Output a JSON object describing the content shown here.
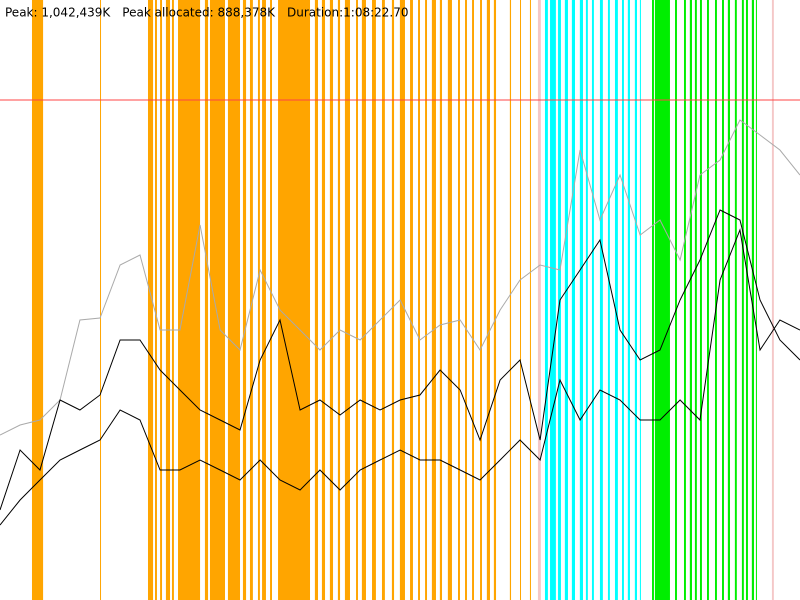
{
  "chart_data": {
    "type": "line",
    "header": [
      "Peak: 1,042,439K",
      "Peak allocated: 888,378K",
      "Duration:1:08:22.70"
    ],
    "xlim": [
      0,
      4103
    ],
    "ylim": [
      0,
      1297800
    ],
    "limit": {
      "value": 1081500,
      "color": "#ff4444"
    },
    "x": [
      0,
      103,
      205,
      308,
      410,
      513,
      616,
      718,
      821,
      923,
      1026,
      1129,
      1231,
      1334,
      1436,
      1539,
      1641,
      1744,
      1847,
      1949,
      2052,
      2154,
      2257,
      2360,
      2462,
      2565,
      2667,
      2770,
      2872,
      2975,
      3077,
      3180,
      3283,
      3385,
      3488,
      3590,
      3693,
      3795,
      3898,
      4000,
      4103
    ],
    "events": [
      {
        "color": "#ffa500",
        "spans": [
          [
            164,
            221
          ],
          [
            513,
            518
          ],
          [
            759,
            785
          ],
          [
            795,
            805
          ],
          [
            821,
            831
          ],
          [
            851,
            872
          ],
          [
            882,
            892
          ],
          [
            913,
            1026
          ],
          [
            1051,
            1067
          ],
          [
            1077,
            1154
          ],
          [
            1169,
            1231
          ],
          [
            1246,
            1262
          ],
          [
            1282,
            1297
          ],
          [
            1323,
            1333
          ],
          [
            1344,
            1364
          ],
          [
            1385,
            1395
          ],
          [
            1426,
            1590
          ],
          [
            1615,
            1631
          ],
          [
            1651,
            1667
          ],
          [
            1692,
            1708
          ],
          [
            1733,
            1744
          ],
          [
            1769,
            1795
          ],
          [
            1826,
            1836
          ],
          [
            1856,
            1877
          ],
          [
            1908,
            1928
          ],
          [
            1959,
            1974
          ],
          [
            2010,
            2021
          ],
          [
            2051,
            2077
          ],
          [
            2103,
            2118
          ],
          [
            2144,
            2154
          ],
          [
            2180,
            2190
          ],
          [
            2215,
            2236
          ],
          [
            2256,
            2267
          ],
          [
            2297,
            2318
          ],
          [
            2349,
            2359
          ],
          [
            2385,
            2395
          ],
          [
            2421,
            2431
          ],
          [
            2462,
            2472
          ],
          [
            2497,
            2513
          ],
          [
            2533,
            2544
          ],
          [
            2615,
            2621
          ],
          [
            2667,
            2672
          ],
          [
            2718,
            2723
          ]
        ]
      },
      {
        "color": "#f4c8c8",
        "spans": [
          [
            2759,
            2774
          ],
          [
            3959,
            3969
          ]
        ]
      },
      {
        "color": "#00ffff",
        "spans": [
          [
            2795,
            2810
          ],
          [
            2821,
            2851
          ],
          [
            2862,
            2877
          ],
          [
            2897,
            2913
          ],
          [
            2933,
            2949
          ],
          [
            2974,
            2990
          ],
          [
            3005,
            3015
          ],
          [
            3036,
            3046
          ],
          [
            3077,
            3092
          ],
          [
            3118,
            3128
          ],
          [
            3154,
            3169
          ],
          [
            3190,
            3200
          ],
          [
            3220,
            3231
          ],
          [
            3256,
            3267
          ],
          [
            3282,
            3287
          ]
        ]
      },
      {
        "color": "#00ee00",
        "spans": [
          [
            3344,
            3354
          ],
          [
            3359,
            3436
          ],
          [
            3462,
            3472
          ],
          [
            3508,
            3518
          ],
          [
            3538,
            3549
          ],
          [
            3564,
            3574
          ],
          [
            3590,
            3600
          ],
          [
            3626,
            3636
          ],
          [
            3667,
            3677
          ],
          [
            3703,
            3713
          ],
          [
            3733,
            3744
          ],
          [
            3769,
            3779
          ],
          [
            3805,
            3815
          ],
          [
            3826,
            3836
          ],
          [
            3856,
            3867
          ],
          [
            3877,
            3882
          ]
        ]
      }
    ],
    "series": [
      {
        "color": "#aaaaaa",
        "values": [
          356895,
          378525,
          389340,
          432600,
          605640,
          609966,
          724605,
          746235,
          584010,
          584010,
          811125,
          584010,
          540750,
          713790,
          627270,
          584010,
          540750,
          584010,
          562380,
          605640,
          648900,
          562380,
          594825,
          605640,
          540750,
          627270,
          692160,
          724605,
          713790,
          973350,
          821940,
          919275,
          789495,
          821940,
          735420,
          919275,
          951720,
          1038240,
          1005795,
          973350,
          919275
        ]
      },
      {
        "color": "#000000",
        "values": [
          194670,
          324450,
          281190,
          432600,
          410970,
          443415,
          562380,
          562380,
          497490,
          454230,
          410970,
          389340,
          367710,
          519120,
          605640,
          410970,
          432600,
          400155,
          432600,
          410970,
          432600,
          443415,
          497490,
          454230,
          346080,
          475860,
          519120,
          346080,
          648900,
          713790,
          778680,
          584010,
          519120,
          540750,
          648900,
          735420,
          843570,
          821940,
          648900,
          562380,
          519120
        ]
      },
      {
        "color": "#000000",
        "values": [
          162225,
          216300,
          259560,
          302820,
          324450,
          346080,
          410970,
          389340,
          281190,
          281190,
          302820,
          281190,
          259560,
          302820,
          259560,
          237930,
          281190,
          237930,
          281190,
          302820,
          324450,
          302820,
          302820,
          281190,
          259560,
          302820,
          346080,
          302820,
          475860,
          389340,
          454230,
          432600,
          389340,
          389340,
          432600,
          389340,
          692160,
          800310,
          540750,
          605640,
          584010
        ]
      }
    ]
  }
}
